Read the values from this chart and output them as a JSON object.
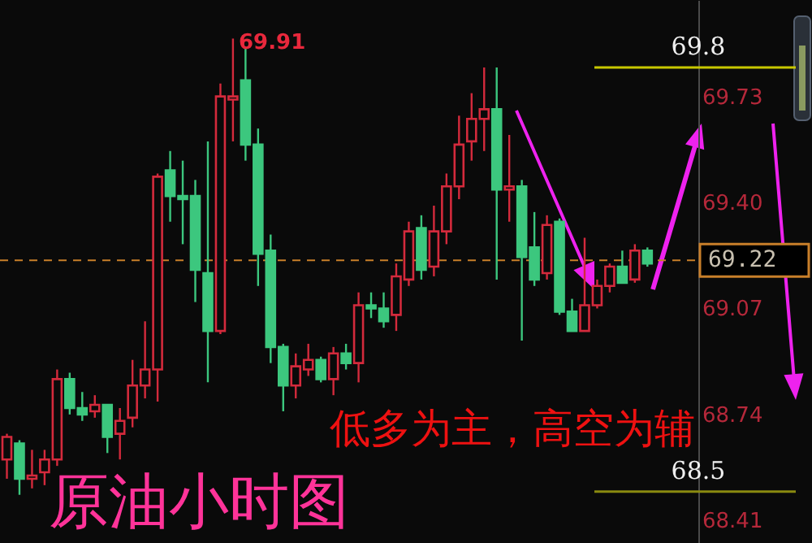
{
  "chart_data": {
    "type": "candlestick",
    "title": "原油小时图",
    "categories": [
      null,
      null,
      null,
      null,
      null,
      null,
      null,
      null,
      null,
      null,
      null,
      null,
      null,
      null,
      null,
      null,
      null,
      null,
      null,
      null,
      null,
      null,
      null,
      null,
      null,
      null,
      null,
      null,
      null,
      null,
      null,
      null,
      null,
      null,
      null,
      null,
      null,
      null,
      null,
      null,
      null,
      null,
      null,
      null,
      null,
      null,
      null,
      null,
      null,
      null,
      null,
      null
    ],
    "ohlc": [
      [
        68.6,
        68.68,
        68.54,
        68.67
      ],
      [
        68.65,
        68.66,
        68.49,
        68.54
      ],
      [
        68.54,
        68.63,
        68.51,
        68.55
      ],
      [
        68.56,
        68.63,
        68.52,
        68.6
      ],
      [
        68.6,
        68.88,
        68.58,
        68.85
      ],
      [
        68.85,
        68.87,
        68.74,
        68.76
      ],
      [
        68.76,
        68.81,
        68.72,
        68.74
      ],
      [
        68.75,
        68.8,
        68.73,
        68.77
      ],
      [
        68.77,
        68.77,
        68.62,
        68.67
      ],
      [
        68.68,
        68.76,
        68.6,
        68.72
      ],
      [
        68.73,
        68.91,
        68.7,
        68.83
      ],
      [
        68.83,
        69.03,
        68.79,
        68.88
      ],
      [
        68.88,
        69.49,
        68.78,
        69.48
      ],
      [
        69.5,
        69.56,
        69.34,
        69.42
      ],
      [
        69.42,
        69.53,
        69.27,
        69.41
      ],
      [
        69.42,
        69.47,
        69.09,
        69.19
      ],
      [
        69.18,
        69.59,
        68.84,
        69.0
      ],
      [
        69.0,
        69.77,
        68.99,
        69.73
      ],
      [
        69.72,
        69.91,
        69.59,
        69.73
      ],
      [
        69.78,
        69.88,
        69.53,
        69.58
      ],
      [
        69.58,
        69.63,
        69.14,
        69.24
      ],
      [
        69.25,
        69.3,
        68.9,
        68.95
      ],
      [
        68.95,
        68.96,
        68.75,
        68.83
      ],
      [
        68.83,
        68.93,
        68.79,
        68.89
      ],
      [
        68.88,
        68.96,
        68.86,
        68.91
      ],
      [
        68.91,
        68.92,
        68.84,
        68.85
      ],
      [
        68.85,
        68.95,
        68.8,
        68.93
      ],
      [
        68.93,
        68.96,
        68.88,
        68.9
      ],
      [
        68.9,
        69.12,
        68.84,
        69.08
      ],
      [
        69.08,
        69.12,
        69.04,
        69.07
      ],
      [
        69.07,
        69.12,
        69.01,
        69.03
      ],
      [
        69.05,
        69.21,
        69.0,
        69.17
      ],
      [
        69.16,
        69.34,
        69.14,
        69.31
      ],
      [
        69.32,
        69.36,
        69.16,
        69.19
      ],
      [
        69.2,
        69.39,
        69.17,
        69.31
      ],
      [
        69.31,
        69.49,
        69.27,
        69.45
      ],
      [
        69.45,
        69.67,
        69.41,
        69.58
      ],
      [
        69.59,
        69.74,
        69.53,
        69.66
      ],
      [
        69.66,
        69.82,
        69.56,
        69.69
      ],
      [
        69.69,
        69.82,
        69.16,
        69.44
      ],
      [
        69.44,
        69.61,
        69.34,
        69.45
      ],
      [
        69.45,
        69.47,
        68.97,
        69.23
      ],
      [
        69.26,
        69.37,
        69.14,
        69.16
      ],
      [
        69.18,
        69.36,
        69.16,
        69.33
      ],
      [
        69.34,
        69.35,
        69.05,
        69.06
      ],
      [
        69.06,
        69.1,
        69.0,
        69.0
      ],
      [
        69.0,
        69.29,
        69.0,
        69.08
      ],
      [
        69.08,
        69.16,
        69.07,
        69.14
      ],
      [
        69.14,
        69.21,
        69.12,
        69.2
      ],
      [
        69.2,
        69.25,
        69.15,
        69.15
      ],
      [
        69.16,
        69.27,
        69.15,
        69.25
      ],
      [
        69.25,
        69.26,
        69.2,
        69.21
      ]
    ],
    "colors": [
      "#d42a3c",
      "#3cc77e",
      "#d42a3c",
      "#d42a3c",
      "#d42a3c",
      "#3cc77e",
      "#3cc77e",
      "#d42a3c",
      "#3cc77e",
      "#d42a3c",
      "#d42a3c",
      "#d42a3c",
      "#d42a3c",
      "#3cc77e",
      "#3cc77e",
      "#3cc77e",
      "#3cc77e",
      "#d42a3c",
      "#d42a3c",
      "#3cc77e",
      "#3cc77e",
      "#3cc77e",
      "#3cc77e",
      "#d42a3c",
      "#d42a3c",
      "#3cc77e",
      "#d42a3c",
      "#3cc77e",
      "#d42a3c",
      "#3cc77e",
      "#3cc77e",
      "#d42a3c",
      "#d42a3c",
      "#3cc77e",
      "#d42a3c",
      "#d42a3c",
      "#d42a3c",
      "#d42a3c",
      "#d42a3c",
      "#3cc77e",
      "#d42a3c",
      "#3cc77e",
      "#3cc77e",
      "#d42a3c",
      "#3cc77e",
      "#3cc77e",
      "#d42a3c",
      "#d42a3c",
      "#d42a3c",
      "#3cc77e",
      "#d42a3c",
      "#3cc77e"
    ],
    "ylim": [
      68.34,
      70.03
    ],
    "yticks": [
      68.41,
      68.74,
      69.07,
      {
        "value": 69.4,
        "label": "69.40"
      },
      69.73
    ],
    "ref_lines": [
      {
        "axis": "y",
        "value": 69.22,
        "label": "69.22",
        "color": "#c87f2a",
        "line_style": "dashed"
      },
      {
        "axis": "y",
        "value": 69.82,
        "label": "69.8",
        "color": "#c8c800",
        "line_style": "solid"
      },
      {
        "axis": "y",
        "value": 68.5,
        "label": "68.5",
        "color": "#8a8a10",
        "line_style": "solid"
      }
    ],
    "annotations": [
      "69.91",
      "低多为主，高空为辅"
    ],
    "grid": false
  }
}
